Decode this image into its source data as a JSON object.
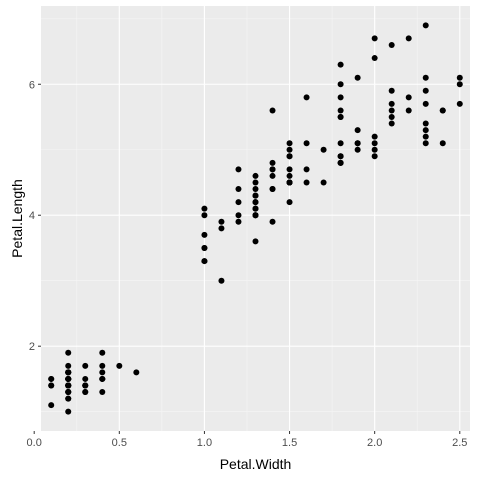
{
  "chart_data": {
    "type": "scatter",
    "title": "",
    "xlabel": "Petal.Width",
    "ylabel": "Petal.Length",
    "xlim": [
      0.04,
      2.56
    ],
    "ylim": [
      0.705,
      7.195
    ],
    "x_ticks": [
      0.0,
      0.5,
      1.0,
      1.5,
      2.0,
      2.5
    ],
    "x_tick_labels": [
      "0.0",
      "0.5",
      "1.0",
      "1.5",
      "2.0",
      "2.5"
    ],
    "y_ticks": [
      2,
      4,
      6
    ],
    "y_tick_labels": [
      "2",
      "4",
      "6"
    ],
    "grid": true,
    "panel_background": "#ebebeb",
    "point_color": "#000000",
    "series": [
      {
        "points": [
          [
            0.2,
            1.4
          ],
          [
            0.2,
            1.4
          ],
          [
            0.2,
            1.3
          ],
          [
            0.2,
            1.5
          ],
          [
            0.2,
            1.4
          ],
          [
            0.4,
            1.7
          ],
          [
            0.3,
            1.4
          ],
          [
            0.2,
            1.5
          ],
          [
            0.2,
            1.4
          ],
          [
            0.1,
            1.5
          ],
          [
            0.2,
            1.5
          ],
          [
            0.2,
            1.6
          ],
          [
            0.1,
            1.4
          ],
          [
            0.1,
            1.1
          ],
          [
            0.2,
            1.2
          ],
          [
            0.4,
            1.5
          ],
          [
            0.4,
            1.3
          ],
          [
            0.3,
            1.4
          ],
          [
            0.3,
            1.7
          ],
          [
            0.3,
            1.5
          ],
          [
            0.2,
            1.7
          ],
          [
            0.4,
            1.5
          ],
          [
            0.2,
            1.0
          ],
          [
            0.5,
            1.7
          ],
          [
            0.2,
            1.9
          ],
          [
            0.2,
            1.6
          ],
          [
            0.4,
            1.6
          ],
          [
            0.2,
            1.5
          ],
          [
            0.2,
            1.4
          ],
          [
            0.2,
            1.6
          ],
          [
            0.2,
            1.6
          ],
          [
            0.4,
            1.5
          ],
          [
            0.1,
            1.5
          ],
          [
            0.2,
            1.4
          ],
          [
            0.2,
            1.5
          ],
          [
            0.2,
            1.2
          ],
          [
            0.2,
            1.3
          ],
          [
            0.1,
            1.4
          ],
          [
            0.2,
            1.3
          ],
          [
            0.2,
            1.5
          ],
          [
            0.3,
            1.3
          ],
          [
            0.3,
            1.3
          ],
          [
            0.2,
            1.3
          ],
          [
            0.6,
            1.6
          ],
          [
            0.4,
            1.9
          ],
          [
            0.3,
            1.4
          ],
          [
            0.2,
            1.6
          ],
          [
            0.2,
            1.4
          ],
          [
            0.2,
            1.5
          ],
          [
            0.2,
            1.4
          ],
          [
            1.4,
            4.7
          ],
          [
            1.5,
            4.5
          ],
          [
            1.5,
            4.9
          ],
          [
            1.3,
            4.0
          ],
          [
            1.5,
            4.6
          ],
          [
            1.3,
            4.5
          ],
          [
            1.6,
            4.7
          ],
          [
            1.0,
            3.3
          ],
          [
            1.3,
            4.6
          ],
          [
            1.4,
            3.9
          ],
          [
            1.0,
            3.5
          ],
          [
            1.5,
            4.2
          ],
          [
            1.0,
            4.0
          ],
          [
            1.4,
            4.7
          ],
          [
            1.3,
            3.6
          ],
          [
            1.4,
            4.4
          ],
          [
            1.5,
            4.5
          ],
          [
            1.0,
            4.1
          ],
          [
            1.5,
            4.5
          ],
          [
            1.1,
            3.9
          ],
          [
            1.8,
            4.8
          ],
          [
            1.3,
            4.0
          ],
          [
            1.5,
            4.9
          ],
          [
            1.2,
            4.7
          ],
          [
            1.3,
            4.3
          ],
          [
            1.4,
            4.4
          ],
          [
            1.4,
            4.8
          ],
          [
            1.7,
            5.0
          ],
          [
            1.5,
            4.5
          ],
          [
            1.0,
            3.5
          ],
          [
            1.1,
            3.8
          ],
          [
            1.0,
            3.7
          ],
          [
            1.2,
            3.9
          ],
          [
            1.6,
            5.1
          ],
          [
            1.5,
            4.5
          ],
          [
            1.6,
            4.5
          ],
          [
            1.5,
            4.7
          ],
          [
            1.3,
            4.4
          ],
          [
            1.3,
            4.1
          ],
          [
            1.3,
            4.0
          ],
          [
            1.2,
            4.4
          ],
          [
            1.4,
            4.6
          ],
          [
            1.2,
            4.0
          ],
          [
            1.0,
            3.3
          ],
          [
            1.3,
            4.2
          ],
          [
            1.2,
            4.2
          ],
          [
            1.3,
            4.2
          ],
          [
            1.3,
            4.3
          ],
          [
            1.1,
            3.0
          ],
          [
            1.3,
            4.1
          ],
          [
            2.5,
            6.0
          ],
          [
            1.9,
            5.1
          ],
          [
            2.1,
            5.9
          ],
          [
            1.8,
            5.6
          ],
          [
            2.2,
            5.8
          ],
          [
            2.1,
            6.6
          ],
          [
            1.7,
            4.5
          ],
          [
            1.8,
            6.3
          ],
          [
            1.8,
            5.8
          ],
          [
            2.5,
            6.1
          ],
          [
            2.0,
            5.1
          ],
          [
            1.9,
            5.3
          ],
          [
            2.1,
            5.5
          ],
          [
            2.0,
            5.0
          ],
          [
            2.4,
            5.1
          ],
          [
            2.3,
            5.3
          ],
          [
            1.8,
            5.5
          ],
          [
            2.2,
            6.7
          ],
          [
            2.3,
            6.9
          ],
          [
            1.5,
            5.0
          ],
          [
            2.3,
            5.7
          ],
          [
            2.0,
            4.9
          ],
          [
            2.0,
            6.7
          ],
          [
            1.8,
            4.9
          ],
          [
            2.1,
            5.7
          ],
          [
            1.8,
            6.0
          ],
          [
            1.8,
            4.8
          ],
          [
            1.8,
            4.9
          ],
          [
            2.1,
            5.6
          ],
          [
            1.6,
            5.8
          ],
          [
            1.9,
            6.1
          ],
          [
            2.0,
            6.4
          ],
          [
            2.2,
            5.6
          ],
          [
            1.5,
            5.1
          ],
          [
            1.4,
            5.6
          ],
          [
            2.3,
            6.1
          ],
          [
            2.4,
            5.6
          ],
          [
            1.8,
            5.5
          ],
          [
            1.8,
            4.8
          ],
          [
            2.1,
            5.4
          ],
          [
            2.4,
            5.6
          ],
          [
            2.3,
            5.1
          ],
          [
            1.9,
            5.1
          ],
          [
            2.3,
            5.9
          ],
          [
            2.5,
            5.7
          ],
          [
            2.3,
            5.2
          ],
          [
            1.9,
            5.0
          ],
          [
            2.0,
            5.2
          ],
          [
            2.3,
            5.4
          ],
          [
            1.8,
            5.1
          ]
        ]
      }
    ]
  }
}
